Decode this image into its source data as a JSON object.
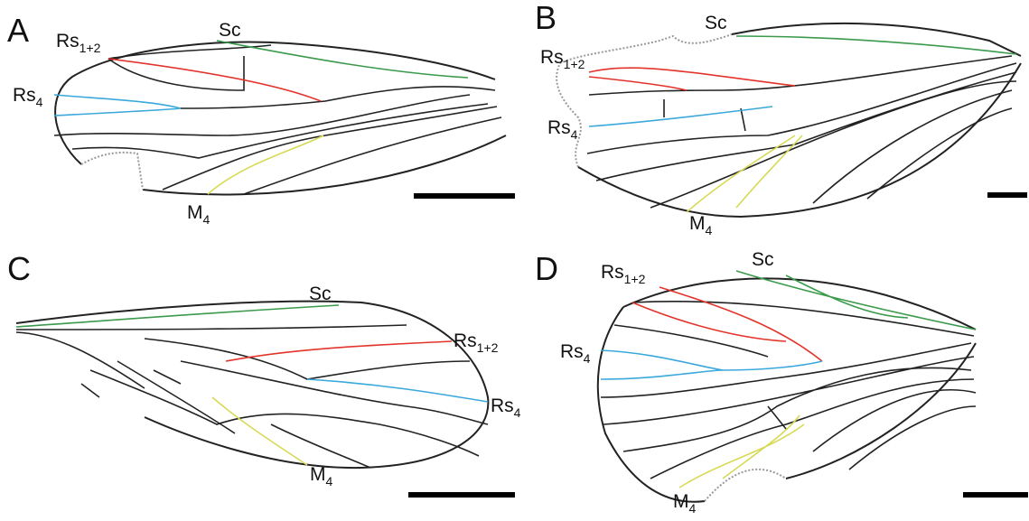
{
  "panels": [
    {
      "label": "A",
      "veins": [
        {
          "name": "Rs",
          "sub": "1+2"
        },
        {
          "name": "Sc"
        },
        {
          "name": "Rs",
          "sub": "4"
        },
        {
          "name": "M",
          "sub": "4"
        }
      ]
    },
    {
      "label": "B",
      "veins": [
        {
          "name": "Sc"
        },
        {
          "name": "Rs",
          "sub": "1+2"
        },
        {
          "name": "Rs",
          "sub": "4"
        },
        {
          "name": "M",
          "sub": "4"
        }
      ]
    },
    {
      "label": "C",
      "veins": [
        {
          "name": "Sc"
        },
        {
          "name": "Rs",
          "sub": "1+2"
        },
        {
          "name": "Rs",
          "sub": "4"
        },
        {
          "name": "M",
          "sub": "4"
        }
      ]
    },
    {
      "label": "D",
      "veins": [
        {
          "name": "Rs",
          "sub": "1+2"
        },
        {
          "name": "Sc"
        },
        {
          "name": "Rs",
          "sub": "4"
        },
        {
          "name": "M",
          "sub": "4"
        }
      ]
    }
  ]
}
